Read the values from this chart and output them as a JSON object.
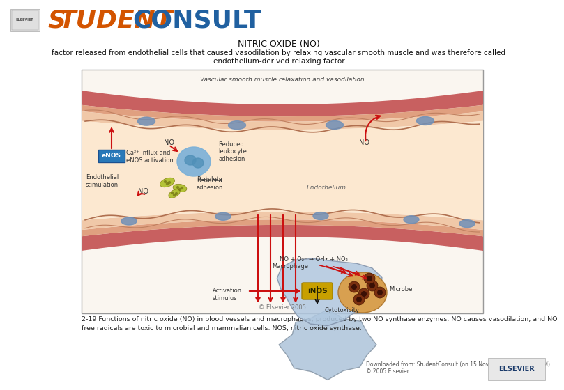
{
  "title_line1": "NITRIC OXIDE (NO)",
  "title_line2": "factor released from endothelial cells that caused vasodilation by relaxing vascular smooth muscle and was therefore called",
  "title_line3": "endothelium-derived relaxing factor",
  "caption": "2-19 Functions of nitric oxide (NO) in blood vessels and macrophages, produced by two NO synthase enzymes. NO causes vasodilation, and NO\nfree radicals are toxic to microbial and mammalian cells. NOS, nitric oxide synthase.",
  "download_text": "Downloaded from: StudentConsult (on 15 November 2009 11:35 AM)\n© 2005 Elsevier",
  "bg_color": "#ffffff",
  "header_orange": "#d35400",
  "header_blue": "#2060a0",
  "vessel_outer": "#c96060",
  "vessel_mid": "#e8b090",
  "lumen_color": "#fce8d0",
  "cell_color": "#7090b8",
  "macro_color": "#a8c0d8",
  "microbe_color": "#d8a060",
  "enos_color": "#2878b8",
  "inos_color": "#c8a000",
  "arrow_red": "#cc1010",
  "text_dark": "#333333",
  "diagram_bg": "#faf6f0",
  "diagram_border": "#999999"
}
